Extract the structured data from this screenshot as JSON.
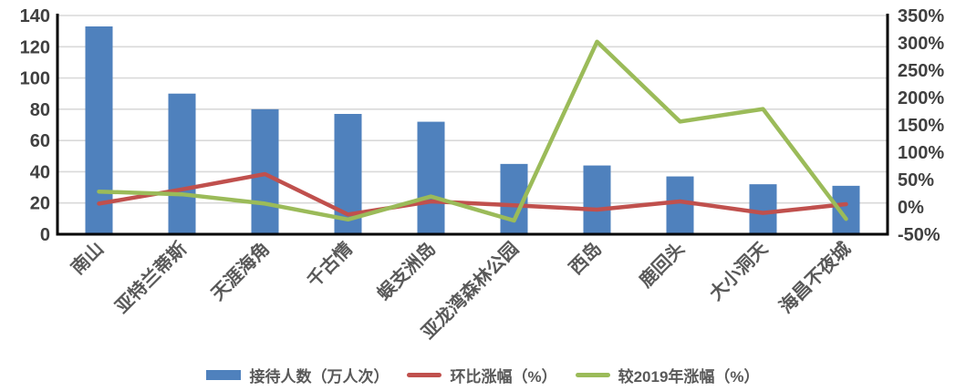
{
  "chart_data": {
    "type": "bar",
    "subtype": "bar-line-combo",
    "title": "",
    "categories": [
      "南山",
      "亚特兰蒂斯",
      "天涯海角",
      "千古情",
      "蜈支洲岛",
      "亚龙湾森林公园",
      "西岛",
      "鹿回头",
      "大小洞天",
      "海昌不夜城"
    ],
    "series": [
      {
        "name": "接待人数（万人次）",
        "type": "bar",
        "axis": "left",
        "color": "#4F81BD",
        "values": [
          133,
          90,
          80,
          77,
          72,
          45,
          44,
          37,
          32,
          31
        ]
      },
      {
        "name": "环比涨幅（%）",
        "type": "line",
        "axis": "right",
        "color": "#C0504D",
        "values": [
          6,
          32,
          60,
          -14,
          10,
          3,
          -5,
          10,
          -11,
          5
        ]
      },
      {
        "name": "较2019年涨幅（%）",
        "type": "line",
        "axis": "right",
        "color": "#9BBB59",
        "values": [
          28,
          23,
          6,
          -23,
          19,
          -25,
          302,
          156,
          179,
          -22
        ]
      }
    ],
    "left_axis": {
      "min": 0,
      "max": 140,
      "step": 20,
      "tick_labels": [
        "0",
        "20",
        "40",
        "60",
        "80",
        "100",
        "120",
        "140"
      ]
    },
    "right_axis": {
      "min": -50,
      "max": 350,
      "step": 50,
      "tick_labels": [
        "-50%",
        "0%",
        "50%",
        "100%",
        "150%",
        "200%",
        "250%",
        "300%",
        "350%"
      ]
    },
    "grid": true,
    "legend_position": "bottom",
    "category_label_rotation_deg": -45
  },
  "colors": {
    "background": "#FFFFFF",
    "gridline": "#D9D9D9",
    "axis_line": "#000000",
    "axis_number_text": "#404040",
    "category_text": "#595959",
    "legend_text": "#595959"
  }
}
